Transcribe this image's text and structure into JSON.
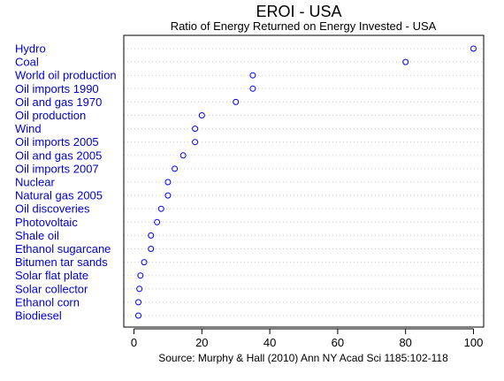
{
  "chart_data": {
    "type": "scatter",
    "title": "EROI - USA",
    "subtitle": "Ratio of Energy Returned on Energy Invested - USA",
    "source": "Source: Murphy & Hall (2010) Ann NY Acad Sci 1185:102-118",
    "xlim": [
      -3,
      103
    ],
    "xticks": [
      0,
      20,
      40,
      60,
      80,
      100
    ],
    "xtick_labels": [
      "0",
      "20",
      "40",
      "60",
      "80",
      "100"
    ],
    "grid": "horizontal dotted",
    "colors": {
      "points": "#0000ff",
      "labels": "#0000cc",
      "grid": "#c8c8c8"
    },
    "categories": [
      "Hydro",
      "Coal",
      "World oil production",
      "Oil imports 1990",
      "Oil and gas 1970",
      "Oil production",
      "Wind",
      "Oil imports 2005",
      "Oil and gas 2005",
      "Oil imports 2007",
      "Nuclear",
      "Natural gas 2005",
      "Oil discoveries",
      "Photovoltaic",
      "Shale oil",
      "Ethanol sugarcane",
      "Bitumen tar sands",
      "Solar flat plate",
      "Solar collector",
      "Ethanol corn",
      "Biodiesel"
    ],
    "values": [
      100,
      80,
      35,
      35,
      30,
      20,
      18,
      18,
      14.5,
      12,
      10,
      10,
      8,
      6.8,
      5,
      5,
      3,
      1.9,
      1.6,
      1.3,
      1.3
    ]
  }
}
